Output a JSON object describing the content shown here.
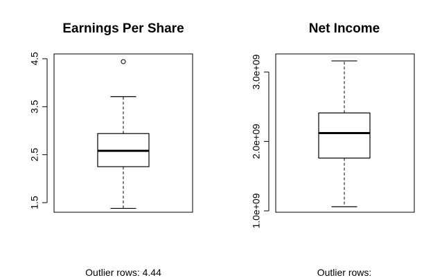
{
  "chart_data": [
    {
      "type": "box",
      "title": "Earnings Per Share",
      "ylim": [
        1.3,
        4.6
      ],
      "yticks": [
        1.5,
        2.5,
        3.5,
        4.5
      ],
      "ytick_labels": [
        "1.5",
        "2.5",
        "3.5",
        "4.5"
      ],
      "stats": {
        "min": 1.38,
        "q1": 2.25,
        "median": 2.58,
        "q3": 2.94,
        "max": 3.71
      },
      "outliers": [
        4.44
      ],
      "footer": "Outlier rows:  4.44"
    },
    {
      "type": "box",
      "title": "Net Income",
      "ylim": [
        980000000.0,
        3260000000.0
      ],
      "yticks": [
        1000000000.0,
        2000000000.0,
        3000000000.0
      ],
      "ytick_labels": [
        "1.0e+09",
        "2.0e+09",
        "3.0e+09"
      ],
      "stats": {
        "min": 1060000000.0,
        "q1": 1760000000.0,
        "median": 2120000000.0,
        "q3": 2410000000.0,
        "max": 3160000000.0
      },
      "outliers": [],
      "footer": "Outlier rows: "
    }
  ]
}
